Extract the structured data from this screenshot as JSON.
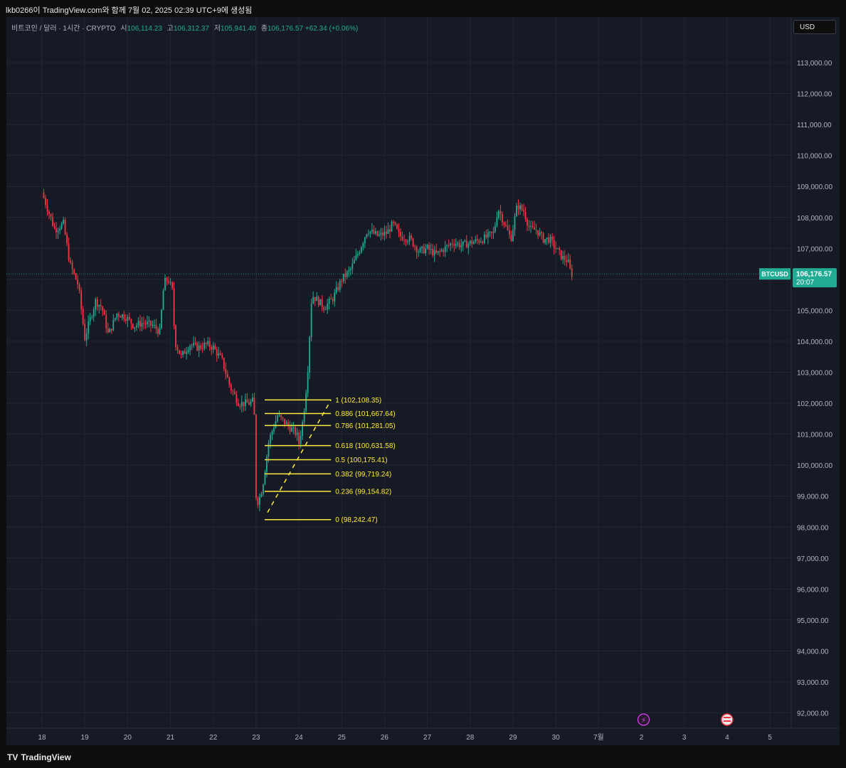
{
  "header": {
    "title": "lkb0266이 TradingView.com와 함께 7월 02, 2025 02:39 UTC+9에 생성됨"
  },
  "legend": {
    "symbol": "비트코인 / 달러 · 1시간 · CRYPTO",
    "open_label": "시",
    "open": "106,114.23",
    "high_label": "고",
    "high": "106,312.37",
    "low_label": "저",
    "low": "105,941.40",
    "close_label": "종",
    "close": "106,176.57",
    "change": "+62.34 (+0.06%)"
  },
  "currency_button": "USD",
  "price_tag": {
    "symbol": "BTCUSD",
    "price": "106,176.57",
    "countdown": "20:07"
  },
  "brand": "TradingView",
  "colors": {
    "background": "#161a25",
    "up": "#22ab94",
    "down": "#f23645",
    "fib": "#ffeb3b",
    "grid": "#232733"
  },
  "chart_data": {
    "type": "candlestick",
    "interval": "1h",
    "y_axis": {
      "ticks": [
        "113,000.00",
        "112,000.00",
        "111,000.00",
        "110,000.00",
        "109,000.00",
        "108,000.00",
        "107,000.00",
        "106,000.00",
        "105,000.00",
        "104,000.00",
        "103,000.00",
        "102,000.00",
        "101,000.00",
        "100,000.00",
        "99,000.00",
        "98,000.00",
        "97,000.00",
        "96,000.00",
        "95,000.00",
        "94,000.00",
        "93,000.00",
        "92,000.00"
      ],
      "tick_values": [
        113000,
        112000,
        111000,
        110000,
        109000,
        108000,
        107000,
        106000,
        105000,
        104000,
        103000,
        102000,
        101000,
        100000,
        99000,
        98000,
        97000,
        96000,
        95000,
        94000,
        93000,
        92000
      ]
    },
    "x_axis": {
      "ticks": [
        "18",
        "19",
        "20",
        "21",
        "22",
        "23",
        "24",
        "25",
        "26",
        "27",
        "28",
        "29",
        "30",
        "7월",
        "2",
        "3",
        "4",
        "5"
      ]
    },
    "path_points": [
      [
        0,
        108800
      ],
      [
        0.3,
        107600
      ],
      [
        0.5,
        107800
      ],
      [
        0.65,
        106500
      ],
      [
        0.85,
        105800
      ],
      [
        1.0,
        104100
      ],
      [
        1.1,
        104600
      ],
      [
        1.25,
        105300
      ],
      [
        1.4,
        105100
      ],
      [
        1.55,
        104200
      ],
      [
        1.75,
        104900
      ],
      [
        1.95,
        104800
      ],
      [
        2.15,
        104500
      ],
      [
        2.35,
        104600
      ],
      [
        2.6,
        104500
      ],
      [
        2.75,
        104300
      ],
      [
        2.85,
        105900
      ],
      [
        2.95,
        106000
      ],
      [
        3.05,
        105600
      ],
      [
        3.1,
        104000
      ],
      [
        3.25,
        103500
      ],
      [
        3.45,
        103900
      ],
      [
        3.65,
        103800
      ],
      [
        3.85,
        103900
      ],
      [
        4.0,
        103800
      ],
      [
        4.2,
        103400
      ],
      [
        4.4,
        102500
      ],
      [
        4.6,
        102000
      ],
      [
        4.75,
        102000
      ],
      [
        4.85,
        102000
      ],
      [
        4.95,
        102100
      ],
      [
        5.0,
        99000
      ],
      [
        5.05,
        98800
      ],
      [
        5.15,
        99300
      ],
      [
        5.3,
        100800
      ],
      [
        5.5,
        101600
      ],
      [
        5.65,
        101400
      ],
      [
        5.8,
        101200
      ],
      [
        5.95,
        101000
      ],
      [
        6.0,
        100700
      ],
      [
        6.1,
        101500
      ],
      [
        6.2,
        102900
      ],
      [
        6.3,
        105500
      ],
      [
        6.45,
        105300
      ],
      [
        6.6,
        105100
      ],
      [
        6.8,
        105400
      ],
      [
        7.0,
        106000
      ],
      [
        7.2,
        106300
      ],
      [
        7.4,
        106900
      ],
      [
        7.6,
        107600
      ],
      [
        7.85,
        107400
      ],
      [
        8.05,
        107500
      ],
      [
        8.2,
        107800
      ],
      [
        8.35,
        107400
      ],
      [
        8.6,
        107300
      ],
      [
        8.8,
        106900
      ],
      [
        9.0,
        107000
      ],
      [
        9.2,
        106800
      ],
      [
        9.4,
        107000
      ],
      [
        9.6,
        107200
      ],
      [
        9.8,
        107100
      ],
      [
        10.05,
        107200
      ],
      [
        10.3,
        107300
      ],
      [
        10.55,
        107500
      ],
      [
        10.65,
        108300
      ],
      [
        10.8,
        107800
      ],
      [
        10.95,
        107300
      ],
      [
        11.1,
        108400
      ],
      [
        11.25,
        108200
      ],
      [
        11.4,
        107600
      ],
      [
        11.55,
        107600
      ],
      [
        11.7,
        107300
      ],
      [
        11.85,
        107300
      ],
      [
        12.0,
        107000
      ],
      [
        12.15,
        106700
      ],
      [
        12.28,
        106600
      ],
      [
        12.35,
        106200
      ],
      [
        12.38,
        106177
      ]
    ],
    "fibonacci": {
      "levels": [
        {
          "ratio": "1",
          "value": 102108.35,
          "label": "1 (102,108.35)"
        },
        {
          "ratio": "0.886",
          "value": 101667.64,
          "label": "0.886 (101,667.64)"
        },
        {
          "ratio": "0.786",
          "value": 101281.05,
          "label": "0.786 (101,281.05)"
        },
        {
          "ratio": "0.618",
          "value": 100631.58,
          "label": "0.618 (100,631.58)"
        },
        {
          "ratio": "0.5",
          "value": 100175.41,
          "label": "0.5 (100,175.41)"
        },
        {
          "ratio": "0.382",
          "value": 99719.24,
          "label": "0.382 (99,719.24)"
        },
        {
          "ratio": "0.236",
          "value": 99154.82,
          "label": "0.236 (99,154.82)"
        },
        {
          "ratio": "0",
          "value": 98242.47,
          "label": "0 (98,242.47)"
        }
      ]
    },
    "last_price": 106176.57
  }
}
